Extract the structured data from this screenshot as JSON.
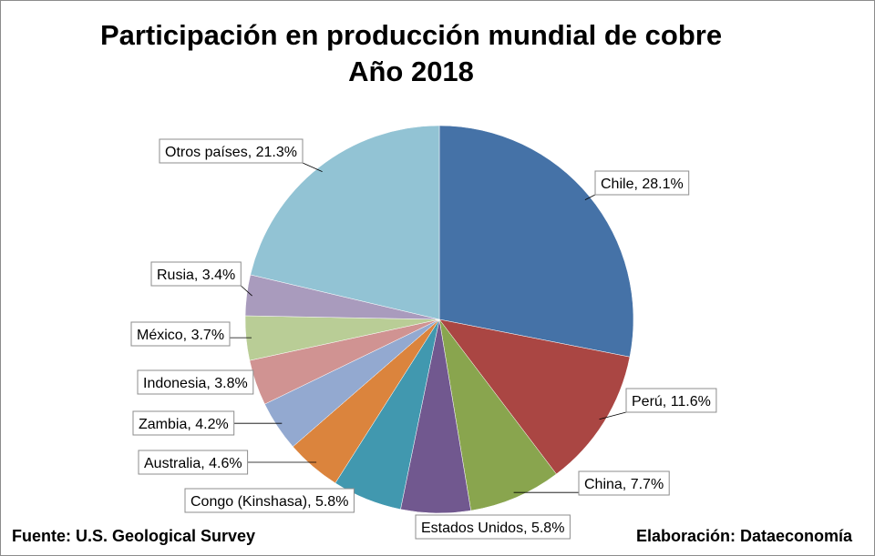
{
  "chart_data": {
    "type": "pie",
    "title": "Participación en producción mundial de cobre",
    "subtitle": "Año 2018",
    "slices": [
      {
        "label": "Chile, 28.1%",
        "name": "Chile",
        "value": 28.1,
        "color": "#4572a7"
      },
      {
        "label": "Perú, 11.6%",
        "name": "Perú",
        "value": 11.6,
        "color": "#aa4643"
      },
      {
        "label": "China, 7.7%",
        "name": "China",
        "value": 7.7,
        "color": "#89a54e"
      },
      {
        "label": "Estados Unidos, 5.8%",
        "name": "Estados Unidos",
        "value": 5.8,
        "color": "#71588f"
      },
      {
        "label": "Congo (Kinshasa), 5.8%",
        "name": "Congo (Kinshasa)",
        "value": 5.8,
        "color": "#4198af"
      },
      {
        "label": "Australia, 4.6%",
        "name": "Australia",
        "value": 4.6,
        "color": "#db843d"
      },
      {
        "label": "Zambia, 4.2%",
        "name": "Zambia",
        "value": 4.2,
        "color": "#93a9d0"
      },
      {
        "label": "Indonesia, 3.8%",
        "name": "Indonesia",
        "value": 3.8,
        "color": "#d09392"
      },
      {
        "label": "México, 3.7%",
        "name": "México",
        "value": 3.7,
        "color": "#b9cd96"
      },
      {
        "label": "Rusia, 3.4%",
        "name": "Rusia",
        "value": 3.4,
        "color": "#a99bbd"
      },
      {
        "label": "Otros países, 21.3%",
        "name": "Otros países",
        "value": 21.3,
        "color": "#92c3d4"
      }
    ]
  },
  "footer": {
    "source": "Fuente: U.S. Geological Survey",
    "credit": "Elaboración: Dataeconomía"
  }
}
